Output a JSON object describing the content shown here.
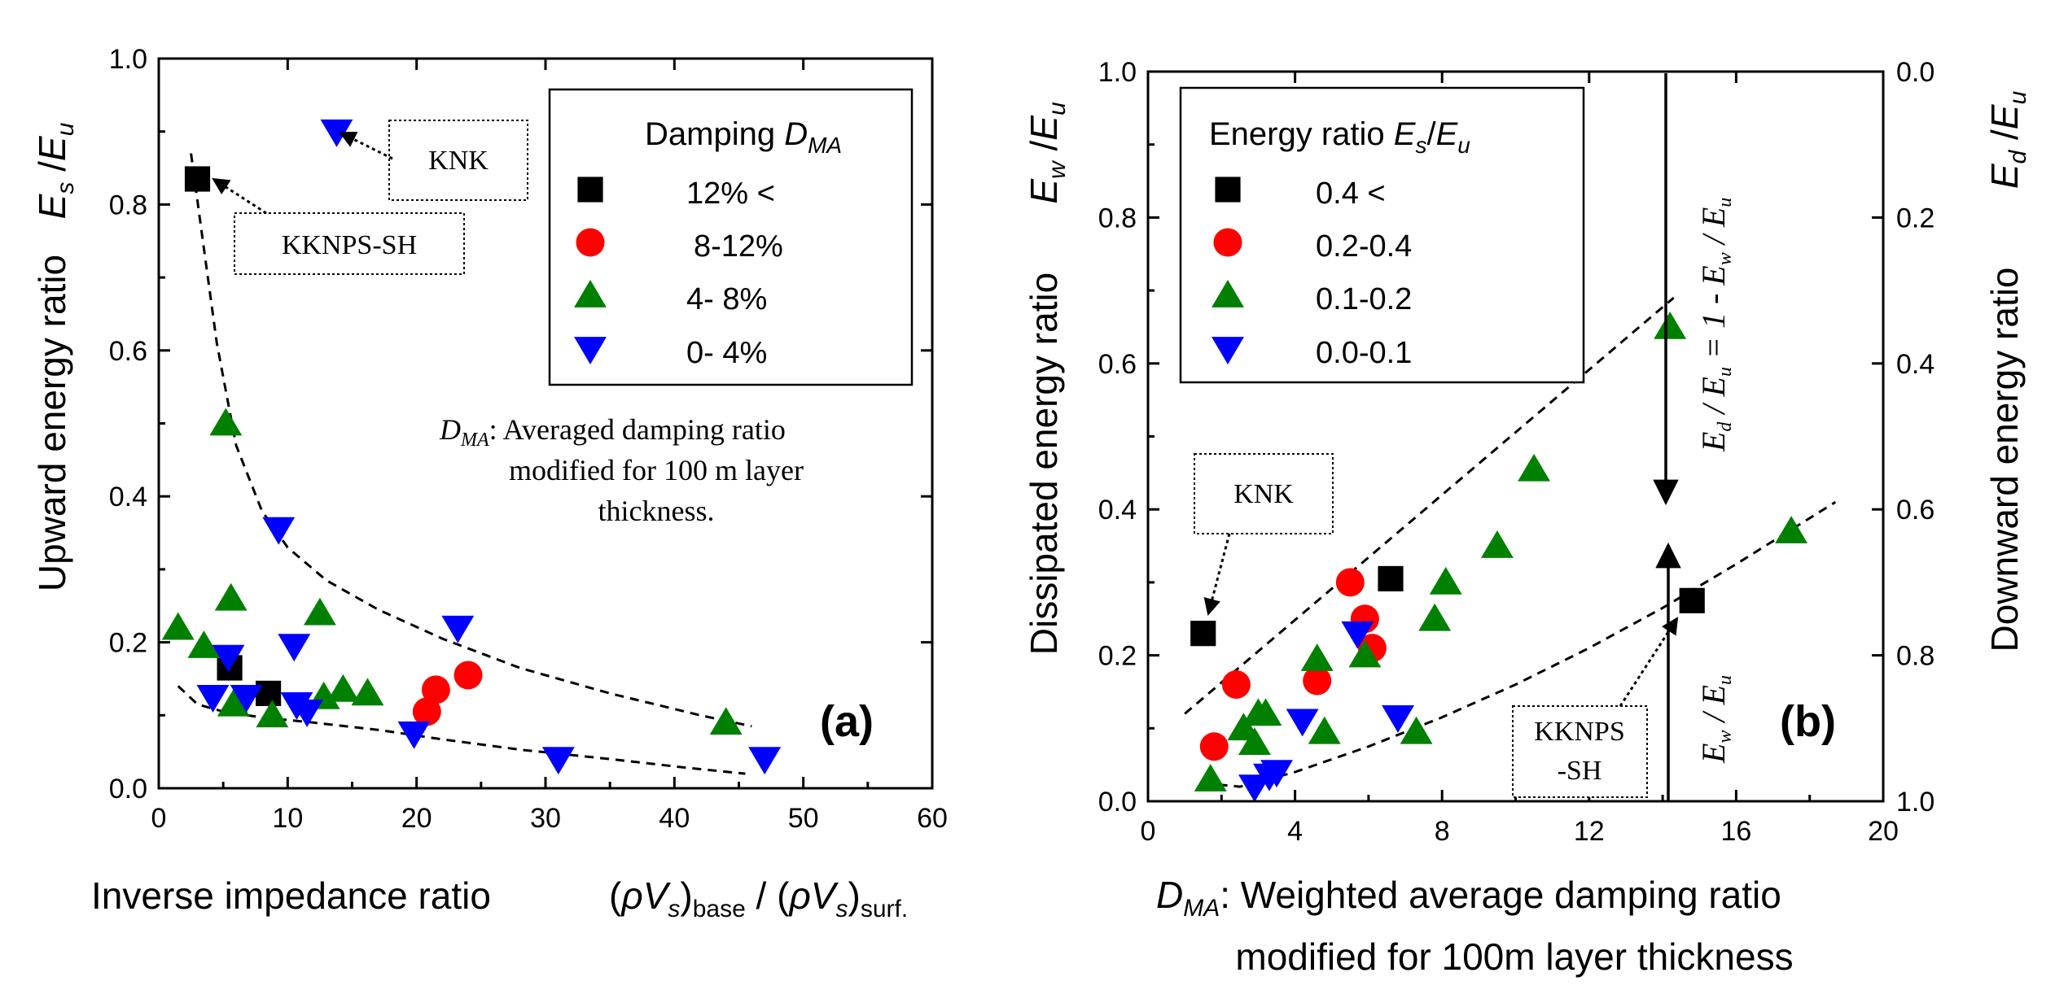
{
  "colors": {
    "black": "#000000",
    "red": "#ff0000",
    "green": "#008000",
    "blue": "#0000ff"
  },
  "chart_data": [
    {
      "id": "a",
      "type": "scatter",
      "panel_label": "(a)",
      "xlabel": "Inverse impedance ratio",
      "xlabel_math": {
        "rho": "ρ",
        "V": "V",
        "s": "s",
        "base": "base",
        "slash": "/",
        "surf": "surf."
      },
      "ylabel": "Upward energy ratio",
      "ylabel_math": {
        "E": "E",
        "s": "s",
        "slash": "/",
        "u": "u"
      },
      "xlim": [
        0,
        60
      ],
      "ylim": [
        0,
        1.0
      ],
      "x_ticks": [
        0,
        10,
        20,
        30,
        40,
        50,
        60
      ],
      "x_tick_labels": [
        "0",
        "10",
        "20",
        "30",
        "40",
        "50",
        "60"
      ],
      "y_ticks": [
        0,
        0.2,
        0.4,
        0.6,
        0.8,
        1.0
      ],
      "y_tick_labels": [
        "0.0",
        "0.2",
        "0.4",
        "0.6",
        "0.8",
        "1.0"
      ],
      "legend": {
        "title": "Damping",
        "title_symbol": "D",
        "title_subscript": "MA",
        "placement": "top-right",
        "entries": [
          "12% <",
          "8-12%",
          "4- 8%",
          "0- 4%"
        ]
      },
      "note": {
        "symbol": "D",
        "subscript": "MA",
        "lines": [
          ": Averaged damping ratio",
          "modified for 100 m layer",
          "thickness."
        ]
      },
      "annotations": [
        "KNK",
        "KKNPS-SH"
      ],
      "series": [
        {
          "name": "12% <",
          "marker": "square",
          "color": "#000000",
          "x": [
            3.0,
            5.5,
            8.5
          ],
          "y": [
            0.835,
            0.165,
            0.13
          ]
        },
        {
          "name": "8-12%",
          "marker": "circle",
          "color": "#ff0000",
          "x": [
            21.5,
            24.0,
            20.8
          ],
          "y": [
            0.135,
            0.155,
            0.105
          ]
        },
        {
          "name": "4- 8%",
          "marker": "triangle-up",
          "color": "#008000",
          "x": [
            1.5,
            3.5,
            5.2,
            5.6,
            5.8,
            8.8,
            12.5,
            12.8,
            14.3,
            16.2,
            44.0
          ],
          "y": [
            0.22,
            0.195,
            0.5,
            0.26,
            0.115,
            0.1,
            0.24,
            0.125,
            0.135,
            0.13,
            0.09
          ]
        },
        {
          "name": "0- 4%",
          "marker": "triangle-down",
          "color": "#0000ff",
          "x": [
            13.8,
            9.3,
            23.2,
            5.4,
            4.2,
            6.8,
            10.5,
            10.7,
            11.5,
            19.8,
            31.0,
            47.0
          ],
          "y": [
            0.9,
            0.355,
            0.22,
            0.18,
            0.125,
            0.125,
            0.195,
            0.115,
            0.105,
            0.075,
            0.04,
            0.04
          ]
        }
      ],
      "trend_lines": [
        {
          "x": [
            2.5,
            3.5,
            4.5,
            6,
            8,
            10,
            13,
            17,
            22,
            28,
            35,
            42,
            46
          ],
          "y": [
            0.87,
            0.74,
            0.61,
            0.47,
            0.38,
            0.33,
            0.285,
            0.245,
            0.205,
            0.165,
            0.13,
            0.1,
            0.085
          ]
        },
        {
          "x": [
            1.5,
            3,
            5,
            8,
            12,
            17,
            22,
            28,
            35,
            41,
            45.5
          ],
          "y": [
            0.14,
            0.115,
            0.105,
            0.097,
            0.09,
            0.08,
            0.067,
            0.053,
            0.04,
            0.028,
            0.02
          ]
        }
      ]
    },
    {
      "id": "b",
      "type": "scatter",
      "panel_label": "(b)",
      "xlabel_symbol": "D",
      "xlabel_subscript": "MA",
      "xlabel": ":  Weighted average damping ratio",
      "xlabel_line2": "modified for 100m layer thickness",
      "ylabel": "Dissipated energy ratio",
      "ylabel_math": {
        "E": "E",
        "w": "w",
        "slash": "/",
        "u": "u"
      },
      "y2label": "Downward energy ratio",
      "y2label_math": {
        "E": "E",
        "d": "d",
        "slash": "/",
        "u": "u"
      },
      "xlim": [
        0,
        20
      ],
      "ylim": [
        0,
        1.0
      ],
      "x_ticks": [
        0,
        4,
        8,
        12,
        16,
        20
      ],
      "x_tick_labels": [
        "0",
        "4",
        "8",
        "12",
        "16",
        "20"
      ],
      "y_ticks": [
        0,
        0.2,
        0.4,
        0.6,
        0.8,
        1.0
      ],
      "y_tick_labels": [
        "0.0",
        "0.2",
        "0.4",
        "0.6",
        "0.8",
        "1.0"
      ],
      "y2_tick_labels": [
        "1.0",
        "0.8",
        "0.6",
        "0.4",
        "0.2",
        "0.0"
      ],
      "legend": {
        "title": "Energy ratio",
        "title_math": {
          "E": "E",
          "s": "s",
          "slash": "/",
          "u": "u"
        },
        "placement": "top-left",
        "entries": [
          "0.4 <",
          "0.2-0.4",
          "0.1-0.2",
          "0.0-0.1"
        ]
      },
      "arrow_labels": {
        "upper": {
          "E1": "E",
          "sub1": "d",
          "mid": " / E",
          "sub2": "u",
          "rest": " = 1 - E",
          "sub3": "w",
          "end": " / E",
          "sub4": "u"
        },
        "lower": {
          "E1": "E",
          "sub1": "w",
          "mid": " / E",
          "sub2": "u"
        }
      },
      "annotations": [
        "KNK",
        "KKNPS",
        "-SH"
      ],
      "series": [
        {
          "name": "0.4 <",
          "marker": "square",
          "color": "#000000",
          "x": [
            1.5,
            6.6,
            14.8
          ],
          "y": [
            0.23,
            0.305,
            0.275
          ]
        },
        {
          "name": "0.2-0.4",
          "marker": "circle",
          "color": "#ff0000",
          "x": [
            1.8,
            2.4,
            4.6,
            5.5,
            5.9,
            6.1
          ],
          "y": [
            0.075,
            0.16,
            0.165,
            0.3,
            0.25,
            0.21
          ]
        },
        {
          "name": "0.1-0.2",
          "marker": "triangle-up",
          "color": "#008000",
          "x": [
            1.7,
            2.6,
            2.9,
            3.0,
            3.2,
            4.6,
            4.8,
            5.9,
            7.3,
            7.8,
            8.1,
            9.5,
            10.5,
            14.2,
            17.5
          ],
          "y": [
            0.03,
            0.1,
            0.08,
            0.12,
            0.12,
            0.195,
            0.095,
            0.2,
            0.095,
            0.25,
            0.3,
            0.35,
            0.455,
            0.65,
            0.37
          ]
        },
        {
          "name": "0.0-0.1",
          "marker": "triangle-down",
          "color": "#0000ff",
          "x": [
            2.9,
            3.3,
            3.5,
            4.2,
            5.7,
            6.8
          ],
          "y": [
            0.02,
            0.035,
            0.04,
            0.11,
            0.23,
            0.115
          ]
        }
      ],
      "trend_lines": [
        {
          "x": [
            1.0,
            14.3
          ],
          "y": [
            0.12,
            0.69
          ]
        },
        {
          "x": [
            1.5,
            2.5,
            4,
            6,
            8,
            10,
            12,
            14,
            16,
            18.7
          ],
          "y": [
            0.025,
            0.02,
            0.04,
            0.075,
            0.115,
            0.16,
            0.21,
            0.265,
            0.325,
            0.41
          ]
        }
      ]
    }
  ]
}
